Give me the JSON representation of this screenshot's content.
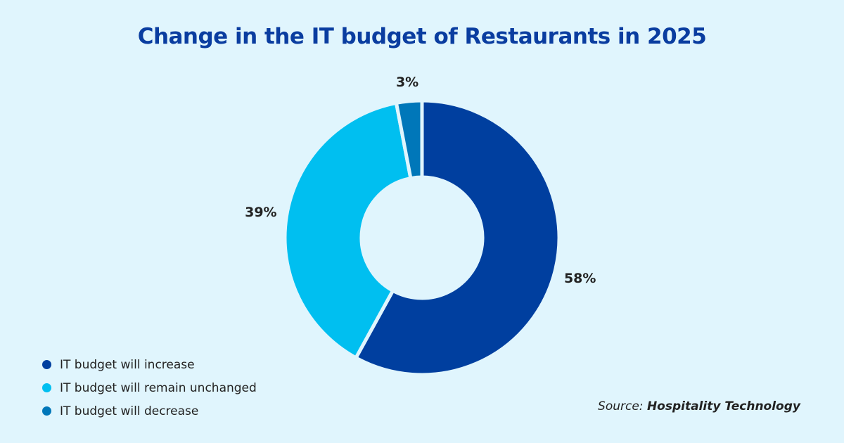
{
  "chart_data": {
    "type": "pie",
    "donut": true,
    "title": "Change in the IT budget of Restaurants in 2025",
    "categories": [
      "IT budget will increase",
      "IT budget will remain unchanged",
      "IT budget will decrease"
    ],
    "values": [
      58,
      39,
      3
    ],
    "data_labels": [
      "58%",
      "39%",
      "3%"
    ],
    "colors": [
      "#003f9f",
      "#00bff0",
      "#0077b9"
    ],
    "legend_position": "bottom-left"
  },
  "source": {
    "prefix": "Source:",
    "name": "Hospitality Technology"
  }
}
